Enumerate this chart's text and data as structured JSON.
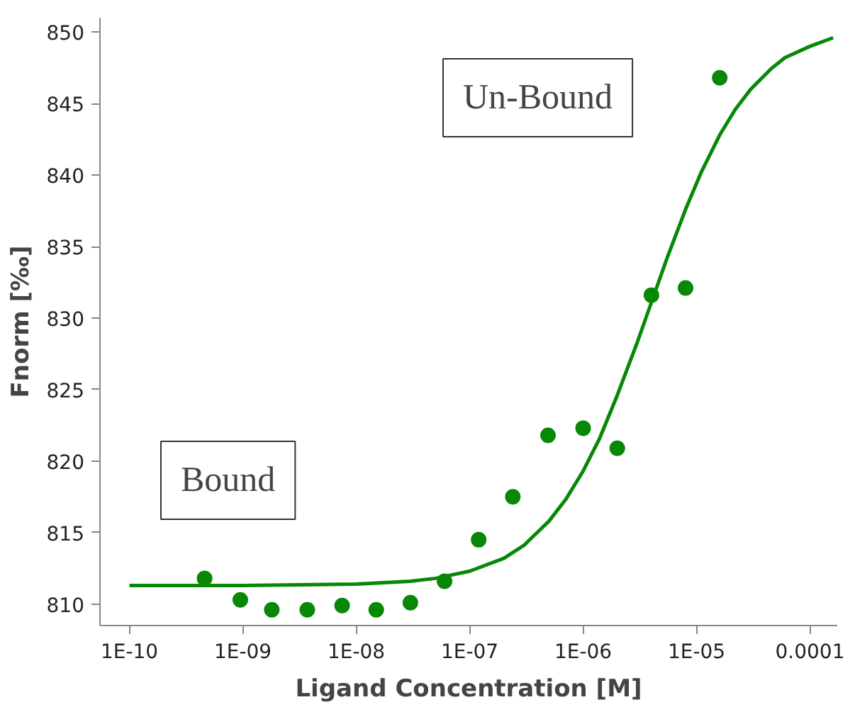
{
  "chart_data": {
    "type": "scatter",
    "xlabel": "Ligand Concentration [M]",
    "ylabel": "Fnorm [‰]",
    "annotations": [
      "Un-Bound",
      "Bound"
    ],
    "log": "x",
    "grid": false,
    "xlim": [
      5.5e-11,
      0.000174
    ],
    "ylim": [
      808.5,
      851
    ],
    "xticks": [
      {
        "value": 1e-10,
        "label": "1E-10"
      },
      {
        "value": 1e-09,
        "label": "1E-09"
      },
      {
        "value": 1e-08,
        "label": "1E-08"
      },
      {
        "value": 1e-07,
        "label": "1E-07"
      },
      {
        "value": 1e-06,
        "label": "1E-06"
      },
      {
        "value": 1e-05,
        "label": "1E-05"
      },
      {
        "value": 0.0001,
        "label": "0.0001"
      }
    ],
    "yticks": [
      810,
      815,
      820,
      825,
      830,
      835,
      840,
      845,
      850
    ],
    "series": [
      {
        "marker": "circle",
        "color": "#078807",
        "x": [
          4.6e-10,
          9.5e-10,
          1.8e-09,
          3.7e-09,
          7.5e-09,
          1.5e-08,
          3e-08,
          6e-08,
          1.2e-07,
          2.4e-07,
          4.9e-07,
          1e-06,
          2e-06,
          4e-06,
          8e-06,
          1.6e-05
        ],
        "values": [
          811.8,
          810.3,
          809.6,
          809.6,
          809.9,
          809.6,
          810.1,
          811.6,
          814.5,
          817.5,
          821.8,
          822.3,
          820.9,
          831.6,
          832.1,
          846.8
        ]
      },
      {
        "type": "line",
        "marker": "none",
        "color": "#078807",
        "x": [
          1e-10,
          1e-09,
          1e-08,
          3e-08,
          5e-08,
          1e-07,
          2e-07,
          3e-07,
          5e-07,
          7e-07,
          1e-06,
          1.4e-06,
          2e-06,
          3e-06,
          4e-06,
          5.5e-06,
          8e-06,
          1.1e-05,
          1.6e-05,
          2.2e-05,
          3e-05,
          4.5e-05,
          6e-05,
          0.0001,
          0.00016
        ],
        "values": [
          811.3,
          811.3,
          811.4,
          811.6,
          811.8,
          812.3,
          813.2,
          814.1,
          815.8,
          817.3,
          819.3,
          821.6,
          824.6,
          828.3,
          831.1,
          834.2,
          837.6,
          840.2,
          842.8,
          844.6,
          846.0,
          847.4,
          848.2,
          849.0,
          849.6
        ]
      }
    ]
  }
}
